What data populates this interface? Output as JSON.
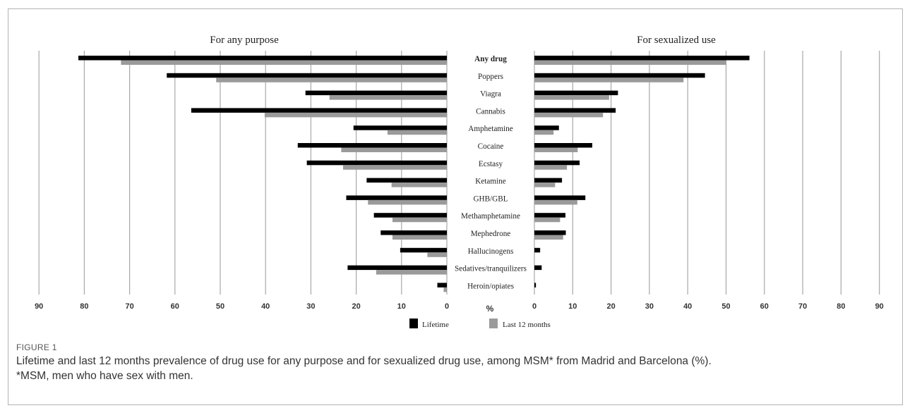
{
  "figure_label": "FIGURE 1",
  "caption": "Lifetime and last 12 months prevalence of drug use for any purpose and for sexualized drug use, among MSM* from Madrid and Barcelona (%).",
  "caption_note": "*MSM, men who have sex with men.",
  "colors": {
    "lifetime": "#000000",
    "last12": "#9a9a9a",
    "grid": "#a8a8a8"
  },
  "chart_data": {
    "type": "bar",
    "orientation": "horizontal",
    "layout": "back-to-back",
    "panels": [
      {
        "title": "For any purpose",
        "direction": "left",
        "xlim": [
          0,
          90
        ]
      },
      {
        "title": "For sexualized use",
        "direction": "right",
        "xlim": [
          0,
          90
        ]
      }
    ],
    "categories": [
      "Any drug",
      "Poppers",
      "Viagra",
      "Cannabis",
      "Amphetamine",
      "Cocaine",
      "Ecstasy",
      "Ketamine",
      "GHB/GBL",
      "Methamphetamine",
      "Mephedrone",
      "Hallucinogens",
      "Sedatives/tranquilizers",
      "Heroin/opiates"
    ],
    "bold_categories": [
      "Any drug"
    ],
    "xticks": [
      0,
      10,
      20,
      30,
      40,
      50,
      60,
      70,
      80,
      90
    ],
    "xlabel": "%",
    "series": [
      {
        "name": "Lifetime",
        "color": "#000000",
        "any_purpose": [
          81.3,
          61.8,
          31.2,
          56.4,
          20.6,
          32.9,
          30.9,
          17.7,
          22.2,
          16.1,
          14.6,
          10.3,
          21.9,
          2.1
        ],
        "sexualized": [
          56.1,
          44.5,
          21.8,
          21.2,
          6.4,
          15.1,
          11.8,
          7.2,
          13.3,
          8.1,
          8.2,
          1.5,
          1.9,
          0.4
        ]
      },
      {
        "name": "Last 12 months",
        "color": "#9a9a9a",
        "any_purpose": [
          71.9,
          50.9,
          25.9,
          40.2,
          13.1,
          23.3,
          22.9,
          12.2,
          17.4,
          12.0,
          12.0,
          4.3,
          15.6,
          0.7
        ],
        "sexualized": [
          50.0,
          38.9,
          19.5,
          17.9,
          5.0,
          11.3,
          8.5,
          5.4,
          11.2,
          6.7,
          7.5,
          0.0,
          0.0,
          0.0
        ]
      }
    ],
    "grid": true,
    "legend_position": "bottom-center"
  }
}
